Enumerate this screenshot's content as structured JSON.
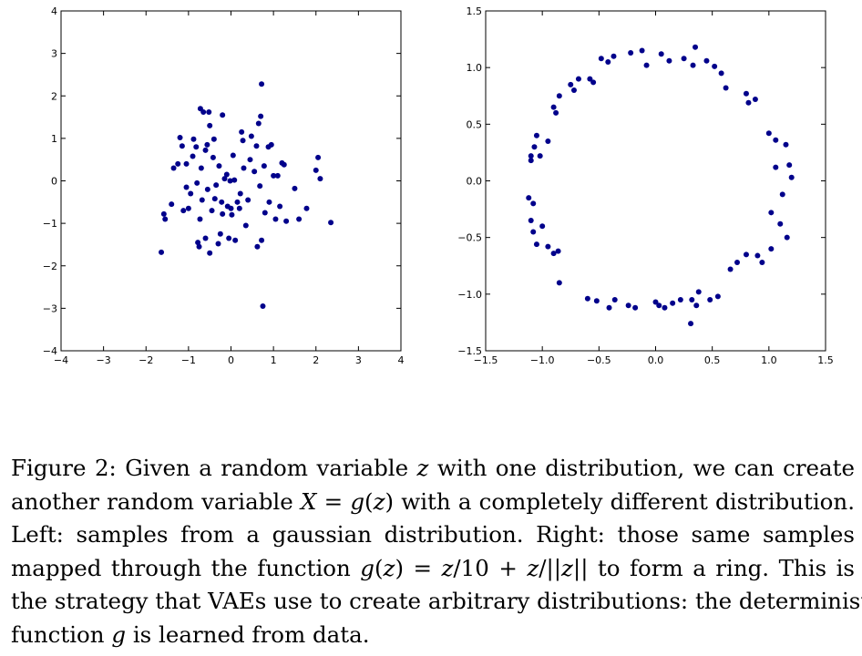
{
  "chart_data": [
    {
      "type": "scatter",
      "title": "",
      "xlabel": "",
      "ylabel": "",
      "xlim": [
        -4,
        4
      ],
      "ylim": [
        -4,
        4
      ],
      "xticks": [
        "−4",
        "−3",
        "−2",
        "−1",
        "0",
        "1",
        "2",
        "3",
        "4"
      ],
      "yticks": [
        "−4",
        "−3",
        "−2",
        "−1",
        "0",
        "1",
        "2",
        "3",
        "4"
      ],
      "grid": false,
      "marker_color": "#00008b",
      "points": [
        [
          -1.64,
          -1.68
        ],
        [
          -1.58,
          -0.78
        ],
        [
          -1.55,
          -0.9
        ],
        [
          -1.4,
          -0.55
        ],
        [
          -1.35,
          0.3
        ],
        [
          -1.25,
          0.4
        ],
        [
          -1.2,
          1.02
        ],
        [
          -1.15,
          0.82
        ],
        [
          -1.12,
          -0.7
        ],
        [
          -1.05,
          -0.15
        ],
        [
          -1.05,
          0.4
        ],
        [
          -1.0,
          -0.65
        ],
        [
          -0.95,
          -0.3
        ],
        [
          -0.9,
          0.58
        ],
        [
          -0.88,
          0.98
        ],
        [
          -0.82,
          0.8
        ],
        [
          -0.8,
          -0.05
        ],
        [
          -0.78,
          -1.45
        ],
        [
          -0.75,
          -1.55
        ],
        [
          -0.73,
          -0.9
        ],
        [
          -0.72,
          1.7
        ],
        [
          -0.7,
          0.3
        ],
        [
          -0.68,
          -0.45
        ],
        [
          -0.65,
          1.62
        ],
        [
          -0.6,
          -1.35
        ],
        [
          -0.6,
          0.72
        ],
        [
          -0.56,
          0.85
        ],
        [
          -0.55,
          -0.2
        ],
        [
          -0.52,
          1.62
        ],
        [
          -0.5,
          1.3
        ],
        [
          -0.5,
          -1.7
        ],
        [
          -0.45,
          -0.7
        ],
        [
          -0.42,
          0.55
        ],
        [
          -0.4,
          0.98
        ],
        [
          -0.38,
          -0.42
        ],
        [
          -0.35,
          -0.1
        ],
        [
          -0.3,
          -1.48
        ],
        [
          -0.28,
          0.35
        ],
        [
          -0.25,
          -1.25
        ],
        [
          -0.22,
          -0.5
        ],
        [
          -0.2,
          -0.78
        ],
        [
          -0.2,
          1.55
        ],
        [
          -0.15,
          0.05
        ],
        [
          -0.1,
          0.15
        ],
        [
          -0.08,
          -0.6
        ],
        [
          -0.05,
          -1.35
        ],
        [
          -0.02,
          0.0
        ],
        [
          0.0,
          -0.65
        ],
        [
          0.02,
          -0.8
        ],
        [
          0.05,
          0.6
        ],
        [
          0.08,
          0.02
        ],
        [
          0.1,
          -1.4
        ],
        [
          0.15,
          -0.5
        ],
        [
          0.2,
          -0.65
        ],
        [
          0.22,
          -0.3
        ],
        [
          0.25,
          1.15
        ],
        [
          0.28,
          0.95
        ],
        [
          0.3,
          0.3
        ],
        [
          0.35,
          -1.05
        ],
        [
          0.4,
          -0.45
        ],
        [
          0.45,
          0.5
        ],
        [
          0.48,
          1.05
        ],
        [
          0.55,
          0.22
        ],
        [
          0.6,
          0.82
        ],
        [
          0.62,
          -1.55
        ],
        [
          0.65,
          1.35
        ],
        [
          0.68,
          -0.12
        ],
        [
          0.7,
          1.52
        ],
        [
          0.72,
          -1.4
        ],
        [
          0.72,
          2.28
        ],
        [
          0.75,
          -2.95
        ],
        [
          0.78,
          0.35
        ],
        [
          0.8,
          -0.75
        ],
        [
          0.88,
          0.8
        ],
        [
          0.9,
          -0.5
        ],
        [
          0.95,
          0.85
        ],
        [
          1.0,
          0.12
        ],
        [
          1.05,
          -0.9
        ],
        [
          1.1,
          0.12
        ],
        [
          1.15,
          -0.6
        ],
        [
          1.2,
          0.42
        ],
        [
          1.25,
          0.38
        ],
        [
          1.3,
          -0.95
        ],
        [
          1.5,
          -0.18
        ],
        [
          1.6,
          -0.9
        ],
        [
          1.78,
          -0.65
        ],
        [
          2.0,
          0.25
        ],
        [
          2.05,
          0.55
        ],
        [
          2.1,
          0.05
        ],
        [
          2.35,
          -0.98
        ]
      ]
    },
    {
      "type": "scatter",
      "title": "",
      "xlabel": "",
      "ylabel": "",
      "xlim": [
        -1.5,
        1.5
      ],
      "ylim": [
        -1.5,
        1.5
      ],
      "xticks": [
        "−1.5",
        "−1.0",
        "−0.5",
        "0.0",
        "0.5",
        "1.0",
        "1.5"
      ],
      "yticks": [
        "−1.5",
        "−1.0",
        "−0.5",
        "0.0",
        "0.5",
        "1.0",
        "1.5"
      ],
      "grid": false,
      "marker_color": "#00008b",
      "points": [
        [
          -0.48,
          1.08
        ],
        [
          -0.42,
          1.05
        ],
        [
          -0.37,
          1.1
        ],
        [
          -0.22,
          1.13
        ],
        [
          -0.12,
          1.15
        ],
        [
          -0.08,
          1.02
        ],
        [
          0.05,
          1.12
        ],
        [
          0.12,
          1.06
        ],
        [
          0.25,
          1.08
        ],
        [
          0.33,
          1.02
        ],
        [
          0.35,
          1.18
        ],
        [
          0.45,
          1.06
        ],
        [
          0.52,
          1.01
        ],
        [
          0.58,
          0.95
        ],
        [
          0.62,
          0.82
        ],
        [
          0.8,
          0.77
        ],
        [
          0.82,
          0.69
        ],
        [
          0.88,
          0.72
        ],
        [
          1.0,
          0.42
        ],
        [
          1.06,
          0.36
        ],
        [
          1.15,
          0.32
        ],
        [
          1.18,
          0.14
        ],
        [
          1.2,
          0.03
        ],
        [
          1.06,
          0.12
        ],
        [
          1.12,
          -0.12
        ],
        [
          1.02,
          -0.28
        ],
        [
          1.1,
          -0.38
        ],
        [
          1.16,
          -0.5
        ],
        [
          1.02,
          -0.6
        ],
        [
          0.9,
          -0.66
        ],
        [
          0.94,
          -0.72
        ],
        [
          0.8,
          -0.65
        ],
        [
          0.72,
          -0.72
        ],
        [
          0.66,
          -0.78
        ],
        [
          0.55,
          -1.02
        ],
        [
          0.48,
          -1.05
        ],
        [
          0.38,
          -0.98
        ],
        [
          0.36,
          -1.1
        ],
        [
          0.32,
          -1.05
        ],
        [
          0.31,
          -1.26
        ],
        [
          0.22,
          -1.05
        ],
        [
          0.15,
          -1.08
        ],
        [
          0.08,
          -1.12
        ],
        [
          0.03,
          -1.1
        ],
        [
          0.0,
          -1.07
        ],
        [
          -0.18,
          -1.12
        ],
        [
          -0.24,
          -1.1
        ],
        [
          -0.36,
          -1.05
        ],
        [
          -0.41,
          -1.12
        ],
        [
          -0.52,
          -1.06
        ],
        [
          -0.6,
          -1.04
        ],
        [
          -0.85,
          -0.9
        ],
        [
          -0.86,
          -0.62
        ],
        [
          -0.9,
          -0.64
        ],
        [
          -0.95,
          -0.58
        ],
        [
          -1.05,
          -0.56
        ],
        [
          -1.08,
          -0.45
        ],
        [
          -1.1,
          -0.35
        ],
        [
          -1.12,
          -0.15
        ],
        [
          -1.08,
          -0.2
        ],
        [
          -1.0,
          -0.4
        ],
        [
          -1.02,
          0.22
        ],
        [
          -1.1,
          0.18
        ],
        [
          -1.1,
          0.22
        ],
        [
          -1.05,
          0.4
        ],
        [
          -0.95,
          0.35
        ],
        [
          -1.07,
          0.3
        ],
        [
          -0.88,
          0.6
        ],
        [
          -0.9,
          0.65
        ],
        [
          -0.85,
          0.75
        ],
        [
          -0.72,
          0.8
        ],
        [
          -0.75,
          0.85
        ],
        [
          -0.68,
          0.9
        ],
        [
          -0.58,
          0.9
        ],
        [
          -0.55,
          0.87
        ]
      ]
    }
  ],
  "caption": {
    "lines": [
      [
        "Figure 2: Given a random variable ",
        {
          "m": "z"
        },
        " with one distribution, we can create"
      ],
      [
        "another random variable ",
        {
          "m": "X"
        },
        " = ",
        {
          "m": "g"
        },
        "(",
        {
          "m": "z"
        },
        ") with a completely different distribution."
      ],
      [
        "Left: samples from a gaussian distribution. Right: those same samples"
      ],
      [
        "mapped through the function ",
        {
          "m": "g"
        },
        "(",
        {
          "m": "z"
        },
        ") = ",
        {
          "m": "z"
        },
        "/10 + ",
        {
          "m": "z"
        },
        "/||",
        {
          "m": "z"
        },
        "|| to form a ring. This is"
      ],
      [
        "the strategy that VAEs use to create arbitrary distributions: the deterministic"
      ],
      [
        "function ",
        {
          "m": "g"
        },
        " is learned from data."
      ]
    ]
  }
}
